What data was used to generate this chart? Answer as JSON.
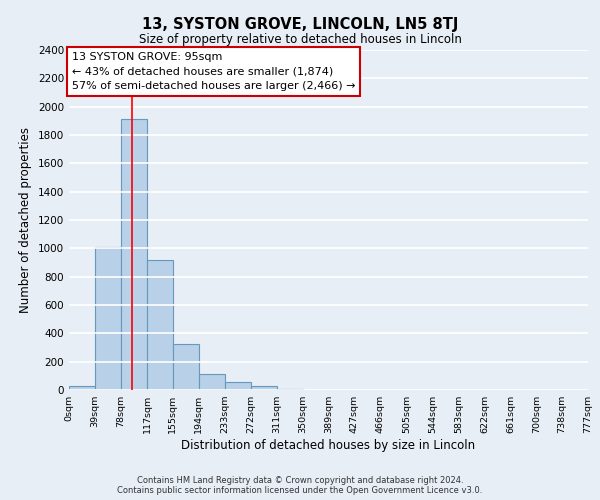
{
  "title": "13, SYSTON GROVE, LINCOLN, LN5 8TJ",
  "subtitle": "Size of property relative to detached houses in Lincoln",
  "xlabel": "Distribution of detached houses by size in Lincoln",
  "ylabel": "Number of detached properties",
  "bin_edges": [
    0,
    39,
    78,
    117,
    155,
    194,
    233,
    272,
    311,
    350,
    389,
    427,
    466,
    505,
    544,
    583,
    622,
    661,
    700,
    738,
    777
  ],
  "bin_labels": [
    "0sqm",
    "39sqm",
    "78sqm",
    "117sqm",
    "155sqm",
    "194sqm",
    "233sqm",
    "272sqm",
    "311sqm",
    "350sqm",
    "389sqm",
    "427sqm",
    "466sqm",
    "505sqm",
    "544sqm",
    "583sqm",
    "622sqm",
    "661sqm",
    "700sqm",
    "738sqm",
    "777sqm"
  ],
  "bar_heights": [
    25,
    1010,
    1910,
    920,
    325,
    110,
    55,
    30,
    5,
    0,
    0,
    0,
    0,
    0,
    0,
    0,
    0,
    0,
    0,
    0
  ],
  "bar_color": "#b8d0e8",
  "bar_edge_color": "#6699bb",
  "background_color": "#e8eef5",
  "grid_color": "#ffffff",
  "red_line_x": 95,
  "annotation_title": "13 SYSTON GROVE: 95sqm",
  "annotation_line1": "← 43% of detached houses are smaller (1,874)",
  "annotation_line2": "57% of semi-detached houses are larger (2,466) →",
  "annotation_box_color": "#ffffff",
  "annotation_box_edge": "#cc0000",
  "ylim": [
    0,
    2400
  ],
  "yticks": [
    0,
    200,
    400,
    600,
    800,
    1000,
    1200,
    1400,
    1600,
    1800,
    2000,
    2200,
    2400
  ],
  "footer1": "Contains HM Land Registry data © Crown copyright and database right 2024.",
  "footer2": "Contains public sector information licensed under the Open Government Licence v3.0."
}
